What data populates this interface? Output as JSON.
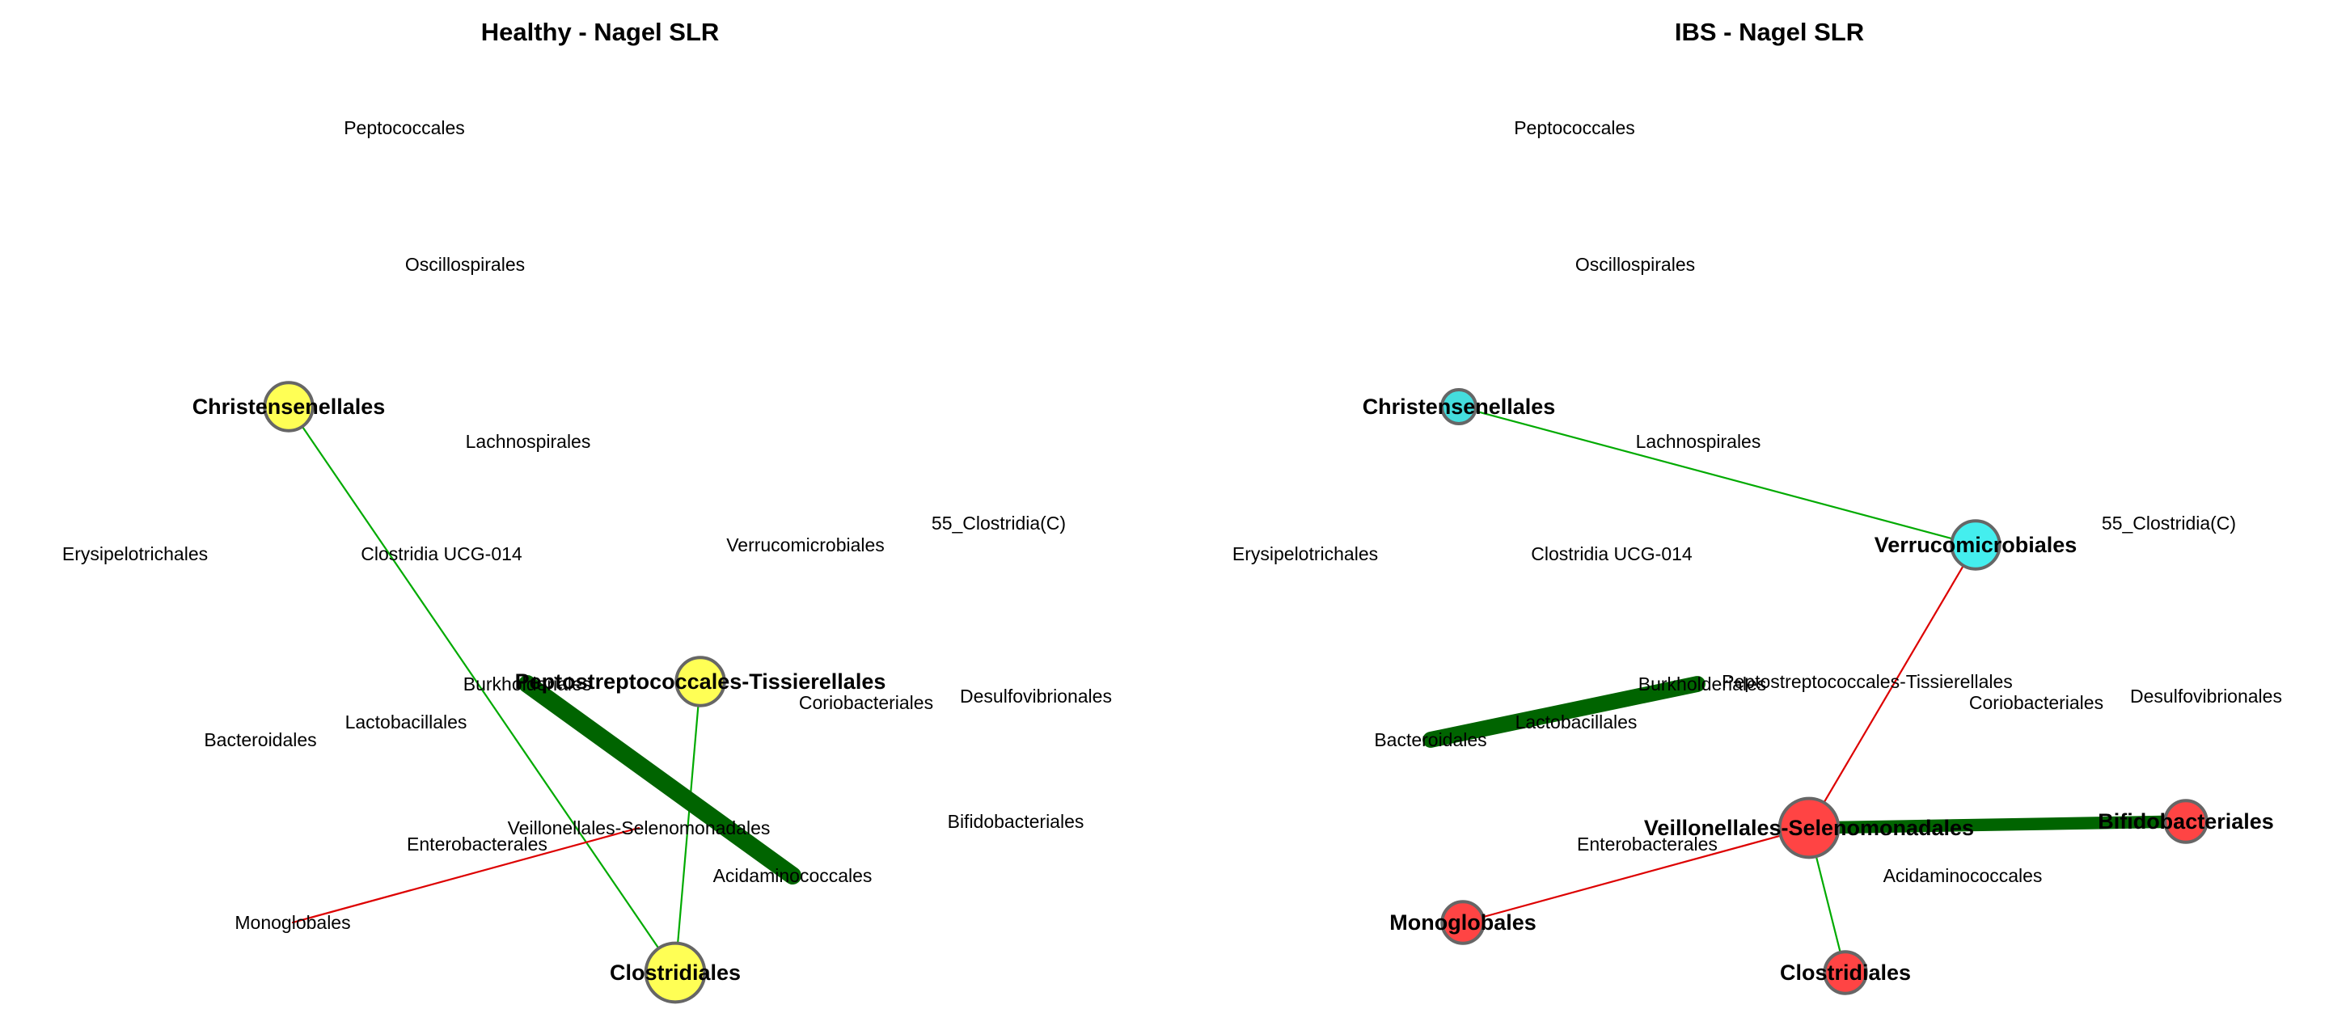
{
  "panels": [
    {
      "title": "Healthy - Nagel SLR",
      "labels": [
        {
          "id": "peptococcales",
          "text": "Peptococcales",
          "bold": false
        },
        {
          "id": "oscillospirales",
          "text": "Oscillospirales",
          "bold": false
        },
        {
          "id": "christensenellales",
          "text": "Christensenellales",
          "bold": true
        },
        {
          "id": "lachnospirales",
          "text": "Lachnospirales",
          "bold": false
        },
        {
          "id": "55-clostridia",
          "text": "55_Clostridia(C)",
          "bold": false
        },
        {
          "id": "erysipelotrichales",
          "text": "Erysipelotrichales",
          "bold": false
        },
        {
          "id": "clostridia-ucg-014",
          "text": "Clostridia UCG-014",
          "bold": false
        },
        {
          "id": "verrucomicrobiales",
          "text": "Verrucomicrobiales",
          "bold": false
        },
        {
          "id": "burkholderiales",
          "text": "Burkholderiales",
          "bold": false
        },
        {
          "id": "peptostreptococcales",
          "text": "Peptostreptococcales-Tissierellales",
          "bold": true
        },
        {
          "id": "coriobacteriales",
          "text": "Coriobacteriales",
          "bold": false
        },
        {
          "id": "desulfovibrionales",
          "text": "Desulfovibrionales",
          "bold": false
        },
        {
          "id": "lactobacillales",
          "text": "Lactobacillales",
          "bold": false
        },
        {
          "id": "bacteroidales",
          "text": "Bacteroidales",
          "bold": false
        },
        {
          "id": "bifidobacteriales",
          "text": "Bifidobacteriales",
          "bold": false
        },
        {
          "id": "veillonellales",
          "text": "Veillonellales-Selenomonadales",
          "bold": false
        },
        {
          "id": "enterobacterales",
          "text": "Enterobacterales",
          "bold": false
        },
        {
          "id": "acidaminococcales",
          "text": "Acidaminococcales",
          "bold": false
        },
        {
          "id": "monoglobales",
          "text": "Monoglobales",
          "bold": false
        },
        {
          "id": "clostridiales",
          "text": "Clostridiales",
          "bold": true
        }
      ],
      "nodes": [
        {
          "id": "christensenellales",
          "color": "#ffff55",
          "size": 2
        },
        {
          "id": "peptostreptococcales",
          "color": "#ffff55",
          "size": 2
        },
        {
          "id": "clostridiales",
          "color": "#ffff55",
          "size": 3
        }
      ],
      "edges": [
        {
          "from": "christensenellales",
          "to": "clostridiales",
          "color": "#00aa00",
          "weight": 1
        },
        {
          "from": "peptostreptococcales",
          "to": "clostridiales",
          "color": "#00aa00",
          "weight": 1
        },
        {
          "from": "burkholderiales",
          "to": "acidaminococcales",
          "color": "#006400",
          "weight": 10
        },
        {
          "from": "monoglobales",
          "to": "veillonellales",
          "color": "#dd0000",
          "weight": 1
        }
      ]
    },
    {
      "title": "IBS - Nagel SLR",
      "labels": [
        {
          "id": "peptococcales",
          "text": "Peptococcales",
          "bold": false
        },
        {
          "id": "oscillospirales",
          "text": "Oscillospirales",
          "bold": false
        },
        {
          "id": "christensenellales",
          "text": "Christensenellales",
          "bold": true
        },
        {
          "id": "lachnospirales",
          "text": "Lachnospirales",
          "bold": false
        },
        {
          "id": "55-clostridia",
          "text": "55_Clostridia(C)",
          "bold": false
        },
        {
          "id": "erysipelotrichales",
          "text": "Erysipelotrichales",
          "bold": false
        },
        {
          "id": "clostridia-ucg-014",
          "text": "Clostridia UCG-014",
          "bold": false
        },
        {
          "id": "verrucomicrobiales",
          "text": "Verrucomicrobiales",
          "bold": true
        },
        {
          "id": "burkholderiales",
          "text": "Burkholderiales",
          "bold": false
        },
        {
          "id": "peptostreptococcales",
          "text": "Peptostreptococcales-Tissierellales",
          "bold": false
        },
        {
          "id": "coriobacteriales",
          "text": "Coriobacteriales",
          "bold": false
        },
        {
          "id": "desulfovibrionales",
          "text": "Desulfovibrionales",
          "bold": false
        },
        {
          "id": "lactobacillales",
          "text": "Lactobacillales",
          "bold": false
        },
        {
          "id": "bacteroidales",
          "text": "Bacteroidales",
          "bold": false
        },
        {
          "id": "bifidobacteriales",
          "text": "Bifidobacteriales",
          "bold": true
        },
        {
          "id": "veillonellales",
          "text": "Veillonellales-Selenomonadales",
          "bold": true
        },
        {
          "id": "enterobacterales",
          "text": "Enterobacterales",
          "bold": false
        },
        {
          "id": "acidaminococcales",
          "text": "Acidaminococcales",
          "bold": false
        },
        {
          "id": "monoglobales",
          "text": "Monoglobales",
          "bold": true
        },
        {
          "id": "clostridiales",
          "text": "Clostridiales",
          "bold": true
        }
      ],
      "nodes": [
        {
          "id": "christensenellales",
          "color": "#44dddd",
          "size": 1
        },
        {
          "id": "verrucomicrobiales",
          "color": "#44eeee",
          "size": 2
        },
        {
          "id": "veillonellales",
          "color": "#ff4444",
          "size": 3
        },
        {
          "id": "bifidobacteriales",
          "color": "#ff4444",
          "size": 1.5
        },
        {
          "id": "monoglobales",
          "color": "#ff4444",
          "size": 1.5
        },
        {
          "id": "clostridiales",
          "color": "#ff4444",
          "size": 1.5
        }
      ],
      "edges": [
        {
          "from": "christensenellales",
          "to": "verrucomicrobiales",
          "color": "#00aa00",
          "weight": 1
        },
        {
          "from": "verrucomicrobiales",
          "to": "veillonellales",
          "color": "#dd0000",
          "weight": 1
        },
        {
          "from": "veillonellales",
          "to": "bifidobacteriales",
          "color": "#006400",
          "weight": 7
        },
        {
          "from": "veillonellales",
          "to": "monoglobales",
          "color": "#dd0000",
          "weight": 1
        },
        {
          "from": "veillonellales",
          "to": "clostridiales",
          "color": "#00aa00",
          "weight": 1
        },
        {
          "from": "bacteroidales",
          "to": "burkholderiales",
          "color": "#006400",
          "weight": 9
        }
      ]
    }
  ]
}
